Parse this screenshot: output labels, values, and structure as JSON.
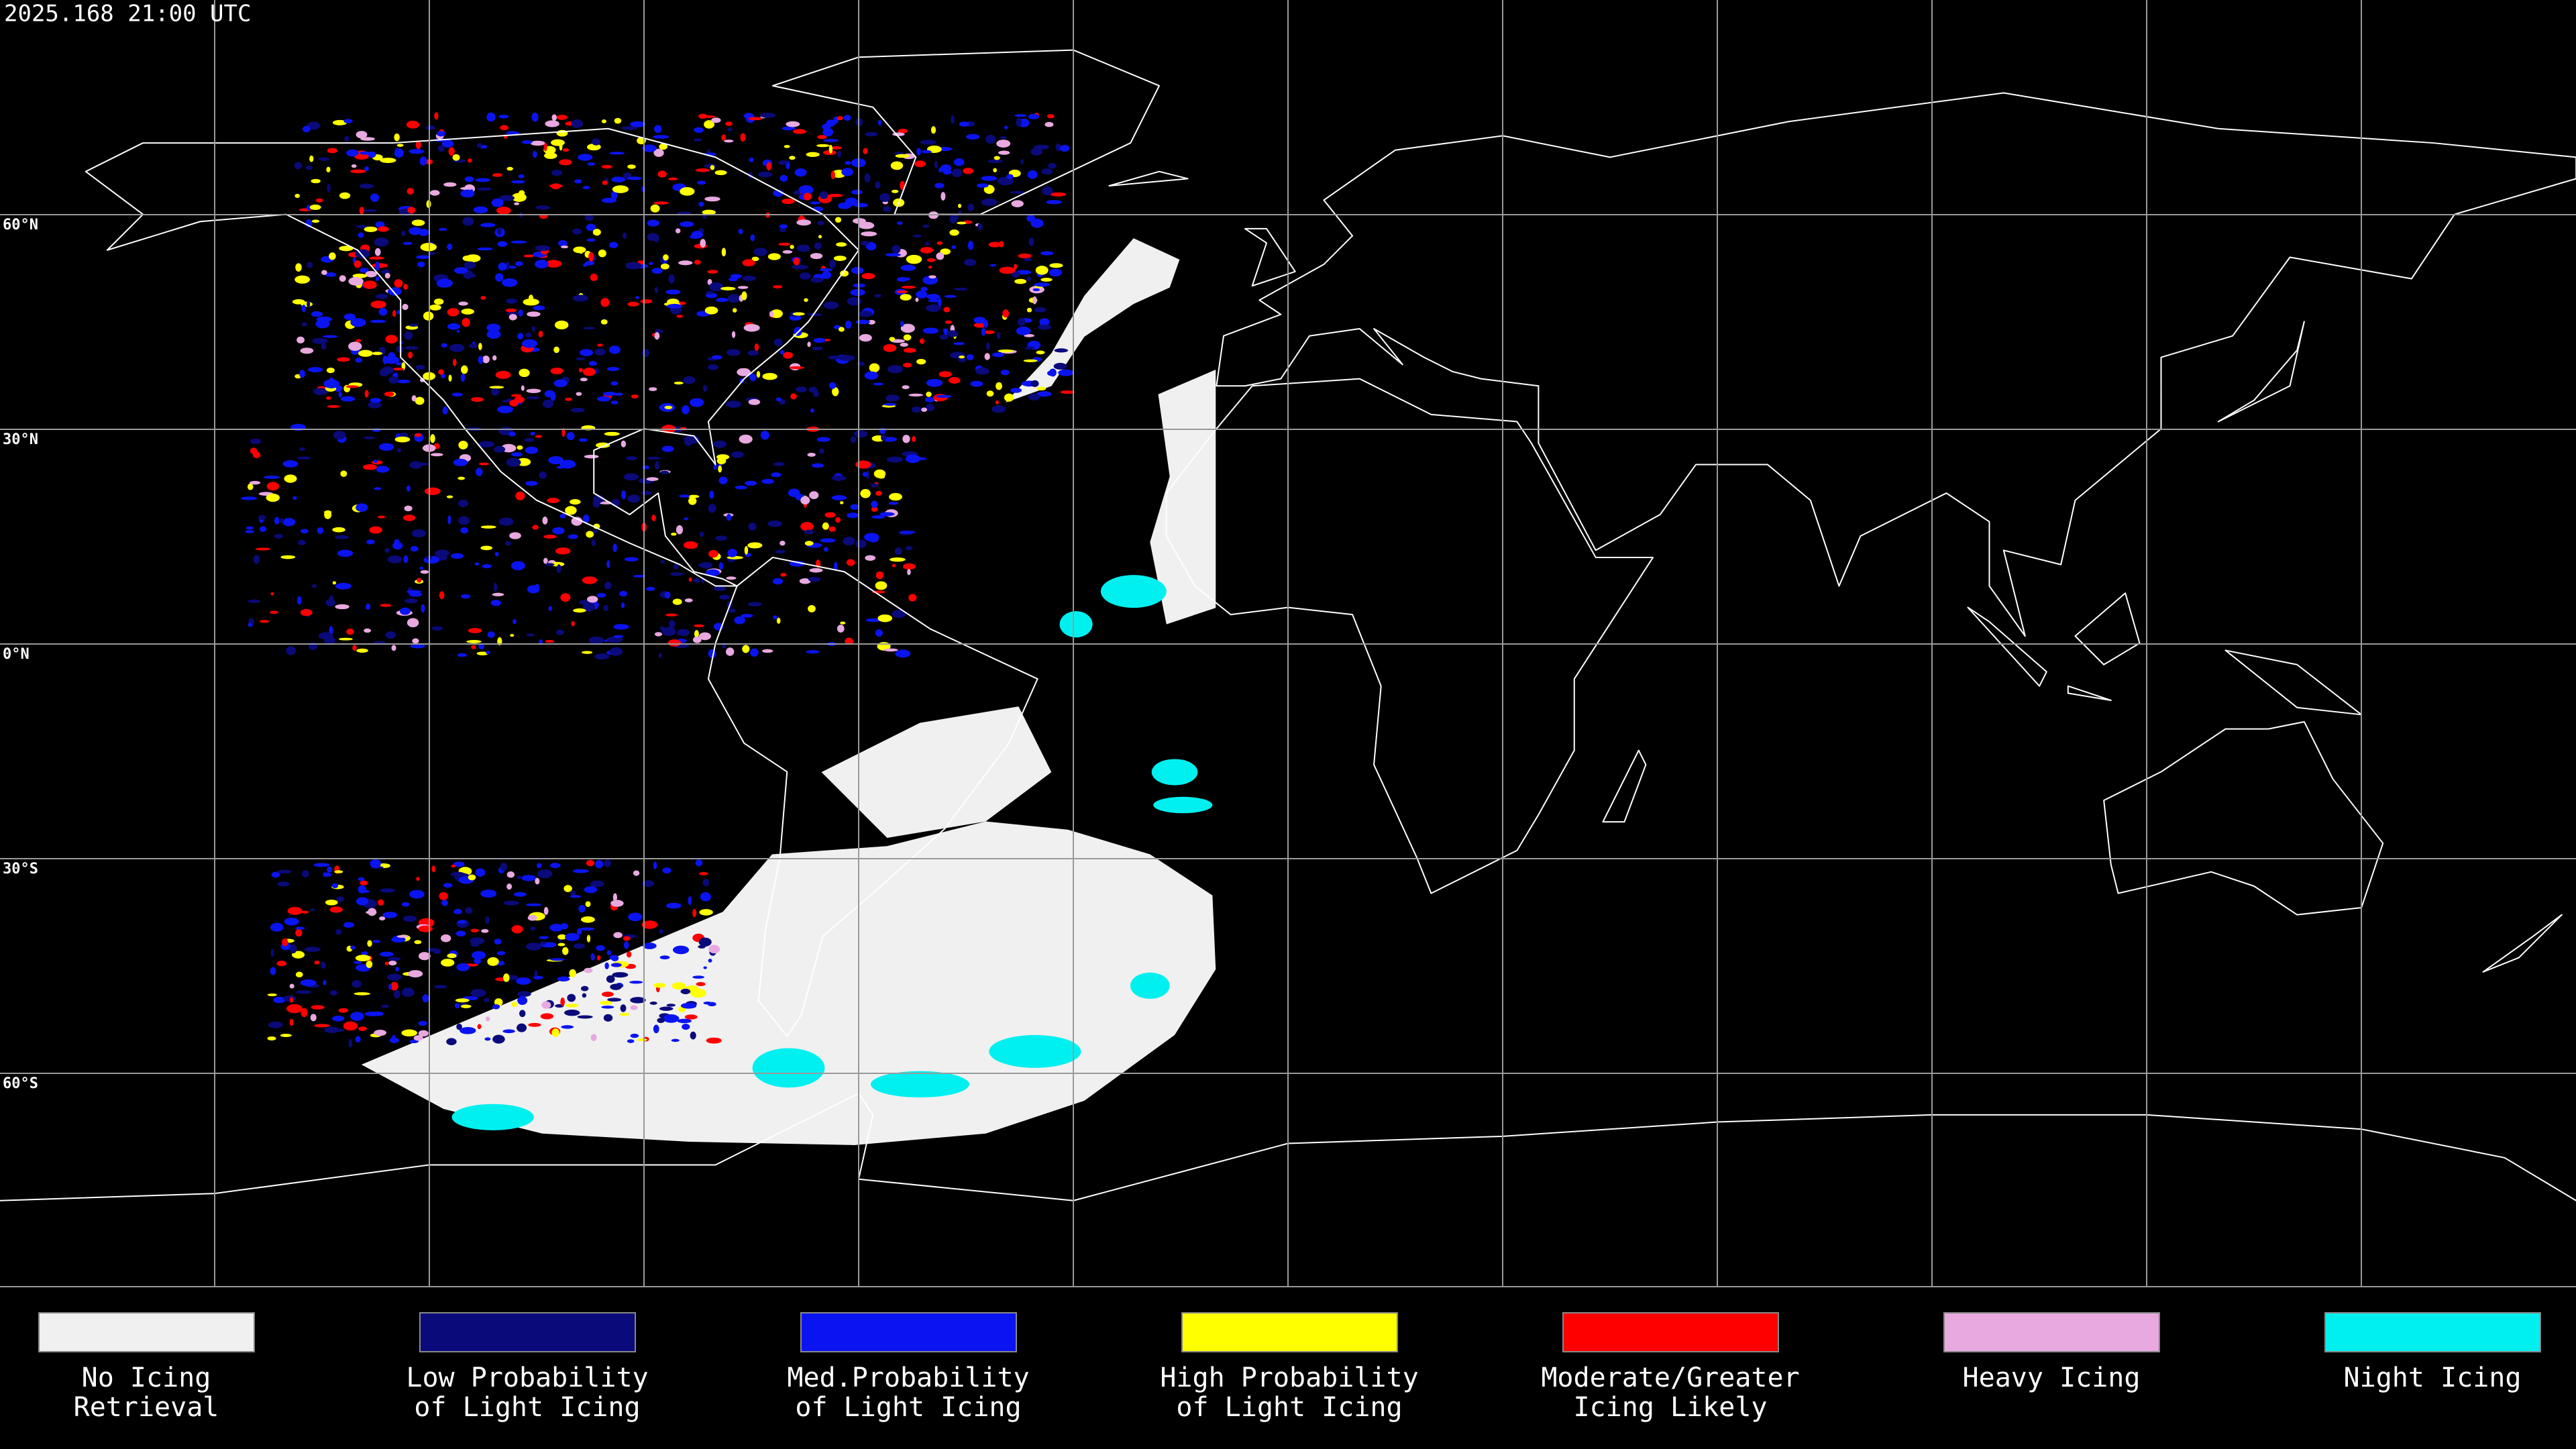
{
  "header": {
    "timestamp": "2025.168 21:00 UTC"
  },
  "latitude_labels": [
    "60°N",
    "30°N",
    "0°N",
    "30°S",
    "60°S"
  ],
  "legend": [
    {
      "lines": [
        "No Icing",
        "Retrieval"
      ],
      "color": "#f0f0f0"
    },
    {
      "lines": [
        "Low Probability",
        "of Light Icing"
      ],
      "color": "#0a0a7a"
    },
    {
      "lines": [
        "Med.Probability",
        "of Light Icing"
      ],
      "color": "#0a14f0"
    },
    {
      "lines": [
        "High Probability",
        "of Light Icing"
      ],
      "color": "#ffff00"
    },
    {
      "lines": [
        "Moderate/Greater",
        "Icing Likely"
      ],
      "color": "#ff0000"
    },
    {
      "lines": [
        "Heavy Icing"
      ],
      "color": "#e8a8e0"
    },
    {
      "lines": [
        "Night Icing"
      ],
      "color": "#00f0f0"
    }
  ]
}
